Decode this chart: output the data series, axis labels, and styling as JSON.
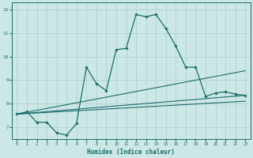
{
  "title": "",
  "xlabel": "Humidex (Indice chaleur)",
  "bg_color": "#cce8e6",
  "grid_color": "#b0d0ce",
  "line_color": "#1a6b6b",
  "xlim": [
    -0.5,
    23.5
  ],
  "ylim": [
    6.5,
    12.3
  ],
  "xticks": [
    0,
    1,
    2,
    3,
    4,
    5,
    6,
    7,
    8,
    9,
    10,
    11,
    12,
    13,
    14,
    15,
    16,
    17,
    18,
    19,
    20,
    21,
    22,
    23
  ],
  "yticks": [
    7,
    8,
    9,
    10,
    11,
    12
  ],
  "line1_x": [
    0,
    1,
    2,
    3,
    4,
    5,
    6,
    7,
    8,
    9,
    10,
    11,
    12,
    13,
    14,
    15,
    16,
    17,
    18,
    19,
    20,
    21,
    22,
    23
  ],
  "line1_y": [
    7.55,
    7.65,
    7.2,
    7.2,
    6.75,
    6.65,
    7.15,
    9.55,
    8.85,
    8.55,
    10.3,
    10.35,
    11.8,
    11.7,
    11.8,
    11.2,
    10.45,
    9.55,
    9.55,
    8.3,
    8.45,
    8.5,
    8.4,
    8.35
  ],
  "line2_x": [
    0,
    23
  ],
  "line2_y": [
    7.55,
    9.4
  ],
  "line3_x": [
    0,
    23
  ],
  "line3_y": [
    7.55,
    8.35
  ],
  "line4_x": [
    0,
    23
  ],
  "line4_y": [
    7.55,
    8.1
  ]
}
